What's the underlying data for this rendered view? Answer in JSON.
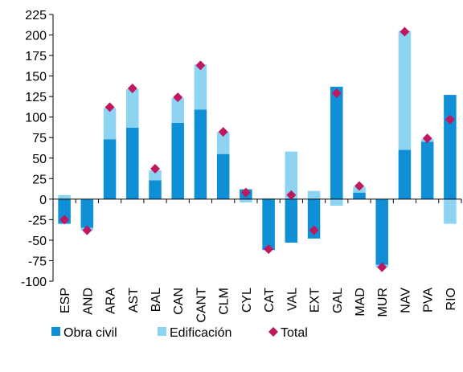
{
  "chart_data": {
    "type": "stacked_bar",
    "categories": [
      "ESP",
      "AND",
      "ARA",
      "AST",
      "BAL",
      "CAN",
      "CANT",
      "CLM",
      "CYL",
      "CAT",
      "VAL",
      "EXT",
      "GAL",
      "MAD",
      "MUR",
      "NAV",
      "PVA",
      "RIO"
    ],
    "series": [
      {
        "name": "Obra civil",
        "color": "#0f8fd6",
        "values": [
          -30,
          -35,
          73,
          87,
          23,
          93,
          109,
          55,
          12,
          -62,
          -53,
          -48,
          137,
          8,
          -80,
          60,
          70,
          127
        ]
      },
      {
        "name": "Edificación",
        "color": "#8dd3f2",
        "values": [
          5,
          -3,
          38,
          47,
          12,
          30,
          55,
          27,
          -4,
          1,
          58,
          10,
          -8,
          7,
          -3,
          145,
          3,
          -30
        ]
      },
      {
        "name": "Total",
        "color": "#c0185f",
        "type": "scatter",
        "values": [
          -25,
          -38,
          112,
          135,
          37,
          124,
          163,
          82,
          8,
          -61,
          5,
          -38,
          129,
          16,
          -83,
          204,
          74,
          97
        ]
      }
    ],
    "ylim": [
      -100,
      225
    ],
    "yticks": [
      -100,
      -75,
      -50,
      -25,
      0,
      25,
      50,
      75,
      100,
      125,
      150,
      175,
      200,
      225
    ]
  }
}
